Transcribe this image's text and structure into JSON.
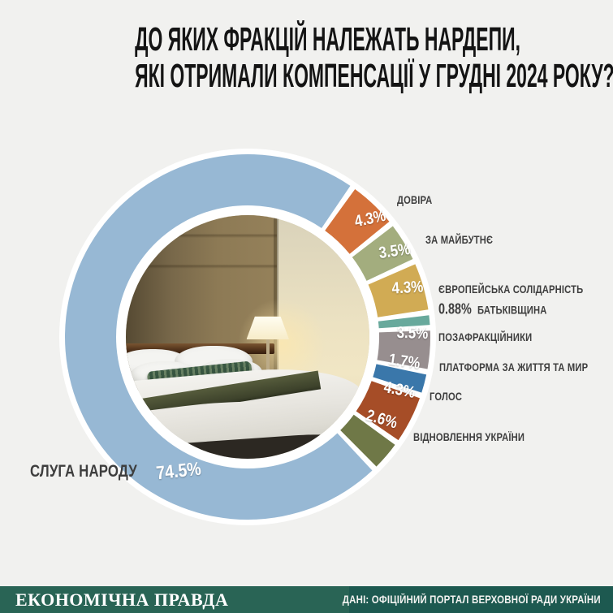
{
  "title": {
    "line1": "ДО ЯКИХ ФРАКЦІЙ НАЛЕЖАТЬ НАРДЕПИ,",
    "line2": "ЯКІ ОТРИМАЛИ КОМПЕНСАЦІЇ У ГРУДНІ 2024 РОКУ?"
  },
  "chart_data": {
    "type": "pie",
    "style": "donut",
    "title": "ДО ЯКИХ ФРАКЦІЙ НАЛЕЖАТЬ НАРДЕПИ, ЯКІ ОТРИМАЛИ КОМПЕНСАЦІЇ У ГРУДНІ 2024 РОКУ?",
    "unit": "%",
    "legend_position": "labels-around-donut",
    "center": "photo of hotel bedroom",
    "slices": [
      {
        "label": "ДОВІРА",
        "value": 4.3,
        "value_label": "4.3%",
        "color": "#d4713a"
      },
      {
        "label": "ЗА МАЙБУТНЄ",
        "value": 3.5,
        "value_label": "3.5%",
        "color": "#a3ad7e"
      },
      {
        "label": "ЄВРОПЕЙСЬКА СОЛІДАРНІСТЬ",
        "value": 4.3,
        "value_label": "4.3%",
        "color": "#d1ab54"
      },
      {
        "label": "БАТЬКІВЩИНА",
        "value": 0.88,
        "value_label": "0.88%",
        "color": "#68a99c"
      },
      {
        "label": "ПОЗАФРАКЦІЙНИКИ",
        "value": 3.5,
        "value_label": "3.5%",
        "color": "#978e8f"
      },
      {
        "label": "ПЛАТФОРМА ЗА ЖИТТЯ ТА МИР",
        "value": 1.7,
        "value_label": "1.7%",
        "color": "#3a77aa"
      },
      {
        "label": "ГОЛОС",
        "value": 4.3,
        "value_label": "4.3%",
        "color": "#a64d27"
      },
      {
        "label": "ВІДНОВЛЕННЯ УКРАЇНИ",
        "value": 2.6,
        "value_label": "2.6%",
        "color": "#6f7847"
      },
      {
        "label": "СЛУГА НАРОДУ",
        "value": 74.5,
        "value_label": "74.5%",
        "color": "#97b8d4"
      }
    ]
  },
  "center_image": {
    "alt": "hotel bedroom with bed, white pillows, green accent pillow and lit table lamp"
  },
  "footer": {
    "brand": "ЕКОНОМІЧНА ПРАВДА",
    "source": "ДАНІ: ОФІЦІЙНИЙ ПОРТАЛ ВЕРХОВНОЇ РАДИ УКРАЇНИ"
  },
  "colors": {
    "background": "#f1f1ef",
    "title_text": "#141414",
    "label_text": "#3e3e3e",
    "footer_left_bg": "#296455",
    "footer_right_bg": "#1d5950",
    "footer_text": "#ffffff",
    "donut_gap": "#ffffff"
  }
}
